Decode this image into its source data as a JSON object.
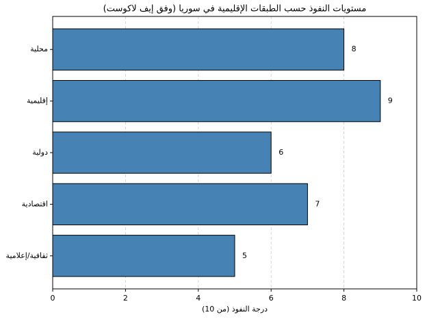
{
  "chart_data": {
    "type": "barh",
    "title": "مستويات النفوذ حسب الطبقات الإقليمية في سوريا (وفق إيف لاكوست)",
    "xlabel": "درجة النفوذ (من 10)",
    "categories": [
      "محلية",
      "إقليمية",
      "دولية",
      "اقتصادية",
      "ثقافية/إعلامية"
    ],
    "values": [
      8,
      9,
      6,
      7,
      5
    ],
    "color": "#4682b4",
    "xlim": [
      0,
      10
    ],
    "xticks": [
      0,
      2,
      4,
      6,
      8,
      10
    ],
    "grid": true
  }
}
